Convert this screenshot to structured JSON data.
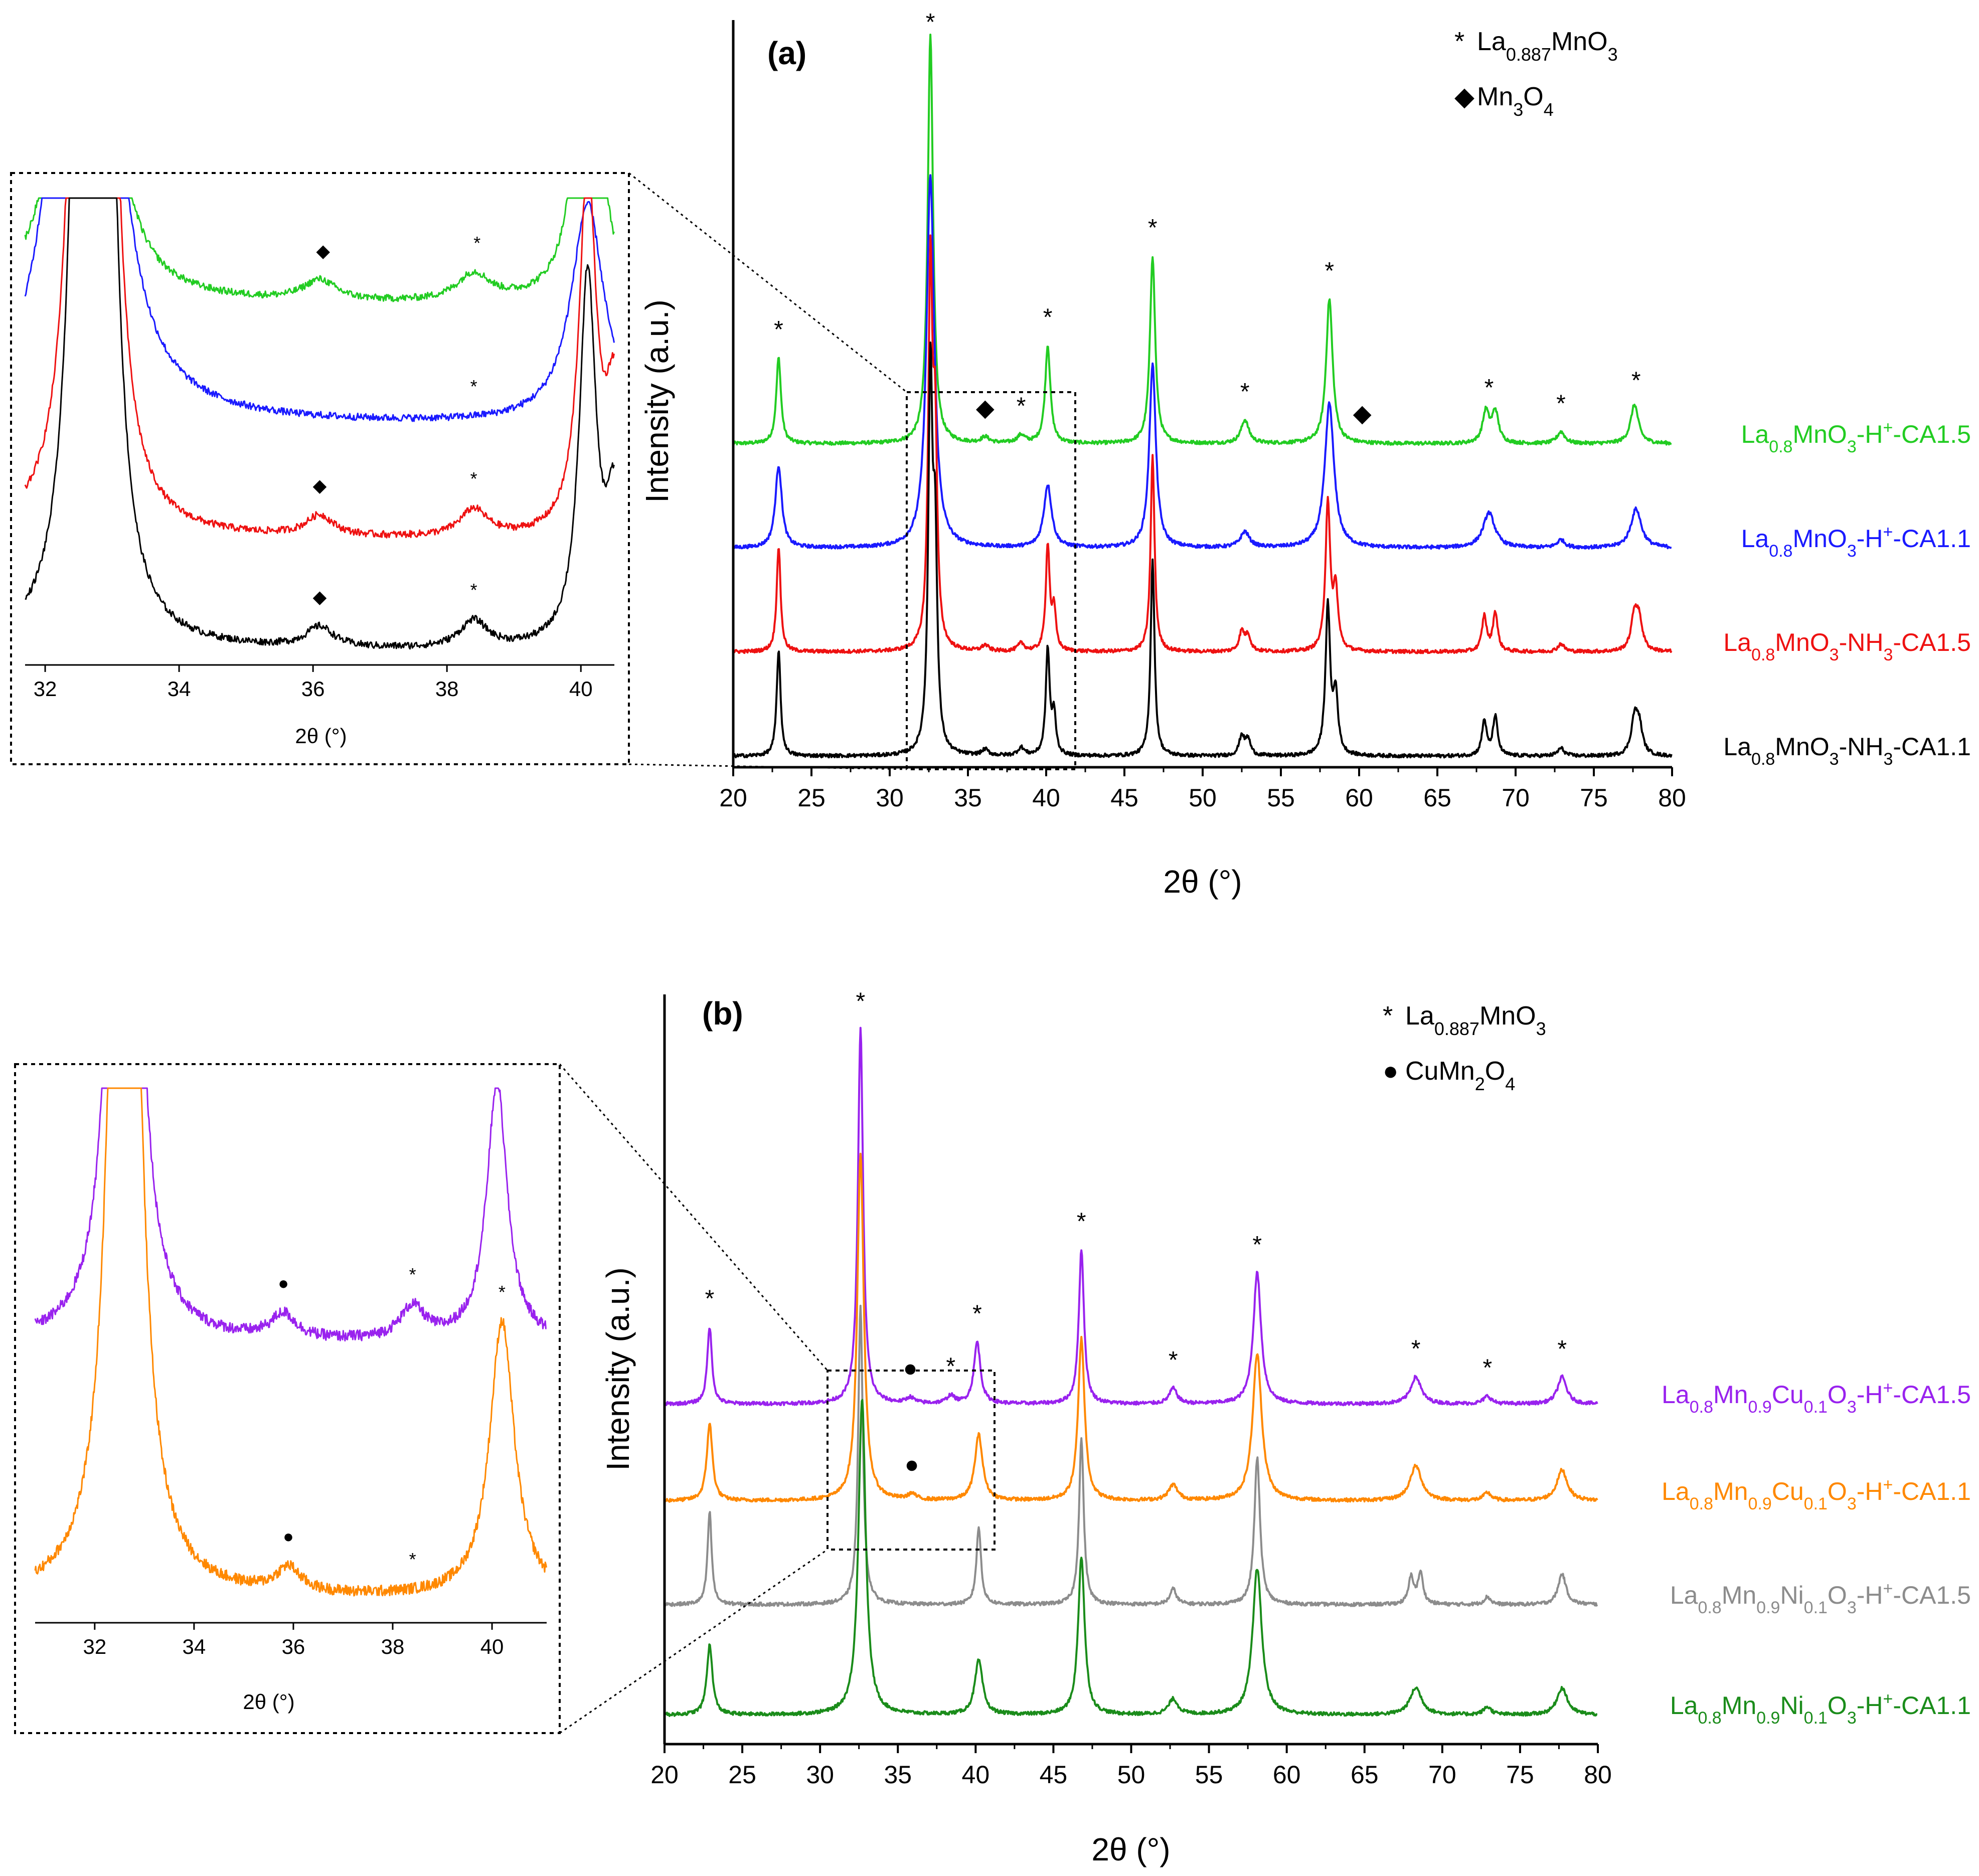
{
  "chart_data": [
    {
      "panel": "a",
      "type": "line",
      "panel_label": "(a)",
      "xlabel": "2θ (°)",
      "ylabel": "Intensity (a.u.)",
      "xlim": [
        20,
        80
      ],
      "xticks": [
        "20",
        "25",
        "30",
        "35",
        "40",
        "45",
        "50",
        "55",
        "60",
        "65",
        "70",
        "75",
        "80"
      ],
      "legend": [
        {
          "marker": "*",
          "label": "La0.887MnO3",
          "base": "La",
          "sub": "0.887",
          "rest": "MnO",
          "sub2": "3"
        },
        {
          "marker": "◆",
          "label": "Mn3O4",
          "base": "Mn",
          "sub": "3",
          "rest": "O",
          "sub2": "4"
        }
      ],
      "series": [
        {
          "name": "La0.8MnO3-H+-CA1.5",
          "color": "#22cc22",
          "label_parts": [
            "La",
            "0.8",
            "MnO",
            "3",
            "-H",
            "+",
            "-CA1.5"
          ],
          "peaks": [
            {
              "x": 22.9,
              "h": 0.22,
              "w": 0.18
            },
            {
              "x": 32.6,
              "h": 1.05,
              "w": 0.2
            },
            {
              "x": 40.1,
              "h": 0.25,
              "w": 0.2
            },
            {
              "x": 46.8,
              "h": 0.48,
              "w": 0.2
            },
            {
              "x": 52.7,
              "h": 0.06,
              "w": 0.3
            },
            {
              "x": 58.1,
              "h": 0.37,
              "w": 0.25
            },
            {
              "x": 68.1,
              "h": 0.08,
              "w": 0.25
            },
            {
              "x": 68.7,
              "h": 0.08,
              "w": 0.25
            },
            {
              "x": 72.9,
              "h": 0.03,
              "w": 0.3
            },
            {
              "x": 77.6,
              "h": 0.1,
              "w": 0.3
            },
            {
              "x": 36.1,
              "h": 0.015,
              "w": 0.3
            },
            {
              "x": 38.4,
              "h": 0.02,
              "w": 0.3
            }
          ]
        },
        {
          "name": "La0.8MnO3-H+-CA1.1",
          "color": "#1a1aff",
          "label_parts": [
            "La",
            "0.8",
            "MnO",
            "3",
            "-H",
            "+",
            "-CA1.1"
          ],
          "peaks": [
            {
              "x": 22.9,
              "h": 0.21,
              "w": 0.25
            },
            {
              "x": 32.6,
              "h": 0.95,
              "w": 0.3
            },
            {
              "x": 40.1,
              "h": 0.16,
              "w": 0.3
            },
            {
              "x": 46.8,
              "h": 0.47,
              "w": 0.25
            },
            {
              "x": 52.7,
              "h": 0.04,
              "w": 0.35
            },
            {
              "x": 58.1,
              "h": 0.37,
              "w": 0.35
            },
            {
              "x": 68.3,
              "h": 0.09,
              "w": 0.45
            },
            {
              "x": 72.9,
              "h": 0.02,
              "w": 0.3
            },
            {
              "x": 77.7,
              "h": 0.1,
              "w": 0.4
            }
          ]
        },
        {
          "name": "La0.8MnO3-NH3-CA1.5",
          "color": "#ee1111",
          "label_parts": [
            "La",
            "0.8",
            "MnO",
            "3",
            "-NH",
            "3",
            "-CA1.5"
          ],
          "peaks": [
            {
              "x": 22.9,
              "h": 0.27,
              "w": 0.15
            },
            {
              "x": 32.6,
              "h": 0.95,
              "w": 0.16
            },
            {
              "x": 32.9,
              "h": 0.5,
              "w": 0.16
            },
            {
              "x": 40.1,
              "h": 0.27,
              "w": 0.15
            },
            {
              "x": 40.5,
              "h": 0.1,
              "w": 0.15
            },
            {
              "x": 46.8,
              "h": 0.5,
              "w": 0.15
            },
            {
              "x": 52.5,
              "h": 0.05,
              "w": 0.2
            },
            {
              "x": 52.9,
              "h": 0.04,
              "w": 0.2
            },
            {
              "x": 58.0,
              "h": 0.38,
              "w": 0.18
            },
            {
              "x": 58.5,
              "h": 0.15,
              "w": 0.18
            },
            {
              "x": 68.0,
              "h": 0.09,
              "w": 0.18
            },
            {
              "x": 68.7,
              "h": 0.1,
              "w": 0.18
            },
            {
              "x": 72.9,
              "h": 0.02,
              "w": 0.25
            },
            {
              "x": 77.6,
              "h": 0.09,
              "w": 0.25
            },
            {
              "x": 77.9,
              "h": 0.07,
              "w": 0.25
            },
            {
              "x": 36.1,
              "h": 0.015,
              "w": 0.25
            },
            {
              "x": 38.4,
              "h": 0.02,
              "w": 0.25
            }
          ]
        },
        {
          "name": "La0.8MnO3-NH3-CA1.1",
          "color": "#000000",
          "label_parts": [
            "La",
            "0.8",
            "MnO",
            "3",
            "-NH",
            "3",
            "-CA1.1"
          ],
          "peaks": [
            {
              "x": 22.9,
              "h": 0.27,
              "w": 0.15
            },
            {
              "x": 32.6,
              "h": 0.95,
              "w": 0.16
            },
            {
              "x": 32.9,
              "h": 0.5,
              "w": 0.16
            },
            {
              "x": 40.1,
              "h": 0.27,
              "w": 0.15
            },
            {
              "x": 40.5,
              "h": 0.1,
              "w": 0.15
            },
            {
              "x": 46.8,
              "h": 0.5,
              "w": 0.15
            },
            {
              "x": 52.5,
              "h": 0.05,
              "w": 0.2
            },
            {
              "x": 52.9,
              "h": 0.04,
              "w": 0.2
            },
            {
              "x": 58.0,
              "h": 0.38,
              "w": 0.18
            },
            {
              "x": 58.5,
              "h": 0.15,
              "w": 0.18
            },
            {
              "x": 68.0,
              "h": 0.09,
              "w": 0.18
            },
            {
              "x": 68.7,
              "h": 0.1,
              "w": 0.18
            },
            {
              "x": 72.9,
              "h": 0.02,
              "w": 0.25
            },
            {
              "x": 77.6,
              "h": 0.09,
              "w": 0.25
            },
            {
              "x": 77.9,
              "h": 0.07,
              "w": 0.25
            },
            {
              "x": 36.1,
              "h": 0.015,
              "w": 0.25
            },
            {
              "x": 38.4,
              "h": 0.02,
              "w": 0.25
            }
          ]
        }
      ],
      "markers": [
        {
          "sym": "*",
          "x": 22.9
        },
        {
          "sym": "*",
          "x": 32.6
        },
        {
          "sym": "*",
          "x": 40.1
        },
        {
          "sym": "*",
          "x": 46.8
        },
        {
          "sym": "*",
          "x": 52.7
        },
        {
          "sym": "*",
          "x": 58.1
        },
        {
          "sym": "*",
          "x": 68.3
        },
        {
          "sym": "*",
          "x": 72.9
        },
        {
          "sym": "*",
          "x": 77.7
        },
        {
          "sym": "◆",
          "x": 36.1
        },
        {
          "sym": "*",
          "x": 38.4
        },
        {
          "sym": "◆",
          "x": 60.2
        }
      ],
      "inset": {
        "xlabel": "2θ (°)",
        "xlim": [
          31.7,
          40.5
        ],
        "xticks": [
          "32",
          "34",
          "36",
          "38",
          "40"
        ],
        "markers": [
          {
            "series": 0,
            "sym": "◆",
            "x": 36.15
          },
          {
            "series": 0,
            "sym": "*",
            "x": 38.45
          },
          {
            "series": 1,
            "sym": "*",
            "x": 38.4
          },
          {
            "series": 2,
            "sym": "◆",
            "x": 36.1
          },
          {
            "series": 2,
            "sym": "*",
            "x": 38.4
          },
          {
            "series": 3,
            "sym": "◆",
            "x": 36.1
          },
          {
            "series": 3,
            "sym": "*",
            "x": 38.4
          }
        ]
      }
    },
    {
      "panel": "b",
      "type": "line",
      "panel_label": "(b)",
      "xlabel": "2θ (°)",
      "ylabel": "Intensity (a.u.)",
      "xlim": [
        20,
        80
      ],
      "xticks": [
        "20",
        "25",
        "30",
        "35",
        "40",
        "45",
        "50",
        "55",
        "60",
        "65",
        "70",
        "75",
        "80"
      ],
      "legend": [
        {
          "marker": "*",
          "label": "La0.887MnO3",
          "base": "La",
          "sub": "0.887",
          "rest": "MnO",
          "sub2": "3"
        },
        {
          "marker": "●",
          "label": "CuMn2O4",
          "base": "CuMn",
          "sub": "2",
          "rest": "O",
          "sub2": "4"
        }
      ],
      "series": [
        {
          "name": "La0.8Mn0.9Cu0.1O3-H+-CA1.5",
          "color": "#9922ee",
          "label_parts": [
            "La",
            "0.8",
            "Mn",
            "0.9",
            "Cu",
            "0.1",
            "O",
            "3",
            "-H",
            "+",
            "-CA1.5"
          ],
          "peaks": [
            {
              "x": 22.9,
              "h": 0.2,
              "w": 0.18
            },
            {
              "x": 32.6,
              "h": 0.97,
              "w": 0.2
            },
            {
              "x": 40.1,
              "h": 0.16,
              "w": 0.25
            },
            {
              "x": 46.8,
              "h": 0.4,
              "w": 0.2
            },
            {
              "x": 52.7,
              "h": 0.04,
              "w": 0.3
            },
            {
              "x": 58.1,
              "h": 0.34,
              "w": 0.3
            },
            {
              "x": 68.3,
              "h": 0.07,
              "w": 0.4
            },
            {
              "x": 72.9,
              "h": 0.02,
              "w": 0.3
            },
            {
              "x": 77.7,
              "h": 0.07,
              "w": 0.35
            },
            {
              "x": 35.8,
              "h": 0.015,
              "w": 0.3
            },
            {
              "x": 38.4,
              "h": 0.02,
              "w": 0.3
            }
          ]
        },
        {
          "name": "La0.8Mn0.9Cu0.1O3-H+-CA1.1",
          "color": "#ff8800",
          "label_parts": [
            "La",
            "0.8",
            "Mn",
            "0.9",
            "Cu",
            "0.1",
            "O",
            "3",
            "-H",
            "+",
            "-CA1.1"
          ],
          "peaks": [
            {
              "x": 22.9,
              "h": 0.2,
              "w": 0.22
            },
            {
              "x": 32.6,
              "h": 0.9,
              "w": 0.25
            },
            {
              "x": 40.2,
              "h": 0.17,
              "w": 0.3
            },
            {
              "x": 46.8,
              "h": 0.42,
              "w": 0.25
            },
            {
              "x": 52.7,
              "h": 0.04,
              "w": 0.35
            },
            {
              "x": 58.1,
              "h": 0.38,
              "w": 0.35
            },
            {
              "x": 68.3,
              "h": 0.09,
              "w": 0.45
            },
            {
              "x": 72.9,
              "h": 0.02,
              "w": 0.3
            },
            {
              "x": 77.7,
              "h": 0.08,
              "w": 0.4
            },
            {
              "x": 35.9,
              "h": 0.015,
              "w": 0.3
            }
          ]
        },
        {
          "name": "La0.8Mn0.9Ni0.1O3-H+-CA1.5",
          "color": "#8c8c8c",
          "label_parts": [
            "La",
            "0.8",
            "Mn",
            "0.9",
            "Ni",
            "0.1",
            "O",
            "3",
            "-H",
            "+",
            "-CA1.5"
          ],
          "peaks": [
            {
              "x": 22.9,
              "h": 0.24,
              "w": 0.16
            },
            {
              "x": 32.6,
              "h": 0.77,
              "w": 0.18
            },
            {
              "x": 40.2,
              "h": 0.2,
              "w": 0.18
            },
            {
              "x": 46.8,
              "h": 0.43,
              "w": 0.18
            },
            {
              "x": 52.7,
              "h": 0.04,
              "w": 0.25
            },
            {
              "x": 58.1,
              "h": 0.38,
              "w": 0.22
            },
            {
              "x": 68.0,
              "h": 0.07,
              "w": 0.2
            },
            {
              "x": 68.6,
              "h": 0.08,
              "w": 0.2
            },
            {
              "x": 72.9,
              "h": 0.02,
              "w": 0.25
            },
            {
              "x": 77.7,
              "h": 0.08,
              "w": 0.3
            }
          ]
        },
        {
          "name": "La0.8Mn0.9Ni0.1O3-H+-CA1.1",
          "color": "#1a8c1a",
          "label_parts": [
            "La",
            "0.8",
            "Mn",
            "0.9",
            "Ni",
            "0.1",
            "O",
            "3",
            "-H",
            "+",
            "-CA1.1"
          ],
          "peaks": [
            {
              "x": 22.9,
              "h": 0.18,
              "w": 0.22
            },
            {
              "x": 32.7,
              "h": 0.82,
              "w": 0.28
            },
            {
              "x": 40.2,
              "h": 0.14,
              "w": 0.3
            },
            {
              "x": 46.8,
              "h": 0.41,
              "w": 0.25
            },
            {
              "x": 52.7,
              "h": 0.04,
              "w": 0.35
            },
            {
              "x": 58.1,
              "h": 0.38,
              "w": 0.35
            },
            {
              "x": 68.3,
              "h": 0.07,
              "w": 0.45
            },
            {
              "x": 72.9,
              "h": 0.02,
              "w": 0.3
            },
            {
              "x": 77.7,
              "h": 0.07,
              "w": 0.4
            }
          ]
        }
      ],
      "markers": [
        {
          "sym": "*",
          "x": 22.9
        },
        {
          "sym": "*",
          "x": 32.6
        },
        {
          "sym": "*",
          "x": 40.1
        },
        {
          "sym": "*",
          "x": 46.8
        },
        {
          "sym": "*",
          "x": 52.7
        },
        {
          "sym": "*",
          "x": 58.1
        },
        {
          "sym": "*",
          "x": 68.3
        },
        {
          "sym": "*",
          "x": 72.9
        },
        {
          "sym": "*",
          "x": 77.7
        },
        {
          "sym": "●",
          "x": 35.8
        },
        {
          "sym": "*",
          "x": 38.4
        },
        {
          "sym": "●",
          "x": 35.9
        }
      ],
      "inset": {
        "xlabel": "2θ (°)",
        "xlim": [
          30.8,
          41.1
        ],
        "xticks": [
          "32",
          "34",
          "36",
          "38",
          "40"
        ],
        "markers": [
          {
            "series": 0,
            "sym": "●",
            "x": 35.8
          },
          {
            "series": 0,
            "sym": "*",
            "x": 38.4
          },
          {
            "series": 1,
            "sym": "●",
            "x": 35.9
          },
          {
            "series": 1,
            "sym": "*",
            "x": 38.4
          },
          {
            "series": 1,
            "sym": "*",
            "x": 40.2
          }
        ]
      }
    }
  ]
}
